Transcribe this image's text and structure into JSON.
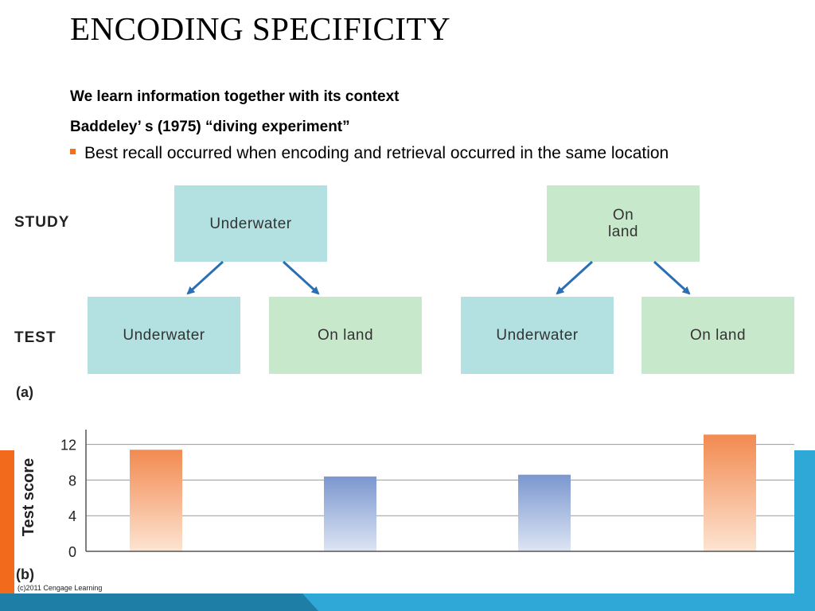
{
  "slide": {
    "title": "ENCODING SPECIFICITY",
    "line1": "We learn information together with its context",
    "line2": "Baddeley’ s (1975) “diving experiment”",
    "bullet": "Best recall occurred when encoding and retrieval occurred in the same location"
  },
  "figure_a": {
    "study_label": "STUDY",
    "test_label": "TEST",
    "panel_label": "(a)",
    "study_left": "Underwater",
    "study_right": "On\nland",
    "test_1": "Underwater",
    "test_2": "On land",
    "test_3": "Underwater",
    "test_4": "On land"
  },
  "chart_data": {
    "type": "bar",
    "panel_label": "(b)",
    "ylabel": "Test score",
    "yticks": [
      0,
      4,
      8,
      12
    ],
    "ylim": [
      0,
      13.5
    ],
    "grid": true,
    "values": [
      11.4,
      8.4,
      8.6,
      13.1
    ],
    "colors": [
      "#f28a50",
      "#7b97cf",
      "#7b97cf",
      "#f28a50"
    ]
  },
  "footer": {
    "copyright": "(c)2011 Cengage Learning"
  },
  "colors": {
    "accent_orange": "#f26b1d",
    "accent_blue": "#2fa8d8",
    "box_water": "#b3e0e0",
    "box_land": "#c8e8cc",
    "arrow": "#2a6fb4"
  }
}
